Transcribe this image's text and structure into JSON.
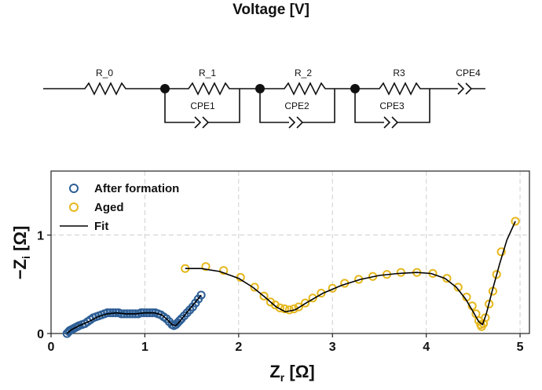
{
  "header": {
    "title": "Voltage [V]"
  },
  "circuit": {
    "r0": "R_0",
    "r1": "R_1",
    "r2": "R_2",
    "r3": "R3",
    "cpe1": "CPE1",
    "cpe2": "CPE2",
    "cpe3": "CPE3",
    "cpe4": "CPE4"
  },
  "chart_data": {
    "type": "scatter",
    "xlabel_main": "Z",
    "xlabel_sub": "r",
    "xlabel_unit": " [Ω]",
    "ylabel_main": "−Z",
    "ylabel_sub": "i",
    "ylabel_unit": " [Ω]",
    "xlim": [
      0,
      5.1
    ],
    "ylim": [
      0,
      1.65
    ],
    "x_ticks": [
      0,
      1,
      2,
      3,
      4,
      5
    ],
    "x_tick_labels": [
      "0",
      "1",
      "2",
      "3",
      "4",
      "5"
    ],
    "y_ticks": [
      0,
      1
    ],
    "y_tick_labels": [
      "0",
      "1"
    ],
    "grid": true,
    "legend_position": "top-left",
    "series": [
      {
        "name": "After formation",
        "kind": "markers",
        "color": "#2e5f96",
        "x": [
          0.17,
          0.19,
          0.2,
          0.22,
          0.24,
          0.26,
          0.28,
          0.3,
          0.33,
          0.36,
          0.39,
          0.42,
          0.45,
          0.48,
          0.51,
          0.54,
          0.57,
          0.6,
          0.63,
          0.66,
          0.69,
          0.72,
          0.75,
          0.78,
          0.81,
          0.84,
          0.87,
          0.9,
          0.93,
          0.96,
          0.99,
          1.02,
          1.05,
          1.08,
          1.11,
          1.14,
          1.17,
          1.2,
          1.23,
          1.26,
          1.29,
          1.31,
          1.33,
          1.35,
          1.37,
          1.39,
          1.42,
          1.45,
          1.48,
          1.51,
          1.54,
          1.57,
          1.6
        ],
        "y": [
          0.0,
          0.02,
          0.03,
          0.04,
          0.05,
          0.06,
          0.07,
          0.08,
          0.09,
          0.1,
          0.12,
          0.14,
          0.16,
          0.17,
          0.18,
          0.19,
          0.2,
          0.21,
          0.21,
          0.21,
          0.21,
          0.21,
          0.2,
          0.2,
          0.2,
          0.2,
          0.2,
          0.2,
          0.2,
          0.21,
          0.21,
          0.21,
          0.21,
          0.21,
          0.21,
          0.2,
          0.19,
          0.17,
          0.15,
          0.12,
          0.09,
          0.08,
          0.09,
          0.11,
          0.13,
          0.15,
          0.18,
          0.21,
          0.24,
          0.27,
          0.31,
          0.35,
          0.39
        ]
      },
      {
        "name": "Aged",
        "kind": "markers",
        "color": "#e6b81e",
        "x": [
          1.43,
          1.65,
          1.84,
          2.02,
          2.17,
          2.27,
          2.34,
          2.39,
          2.44,
          2.49,
          2.54,
          2.59,
          2.64,
          2.71,
          2.79,
          2.88,
          3.0,
          3.13,
          3.28,
          3.43,
          3.58,
          3.73,
          3.9,
          4.07,
          4.22,
          4.34,
          4.43,
          4.49,
          4.53,
          4.56,
          4.58,
          4.59,
          4.61,
          4.63,
          4.67,
          4.71,
          4.75,
          4.8,
          4.95
        ],
        "y": [
          0.66,
          0.68,
          0.64,
          0.57,
          0.47,
          0.38,
          0.32,
          0.29,
          0.26,
          0.25,
          0.24,
          0.25,
          0.27,
          0.31,
          0.36,
          0.41,
          0.46,
          0.51,
          0.55,
          0.58,
          0.6,
          0.62,
          0.62,
          0.61,
          0.56,
          0.47,
          0.37,
          0.28,
          0.2,
          0.13,
          0.09,
          0.07,
          0.1,
          0.16,
          0.3,
          0.43,
          0.6,
          0.83,
          1.14
        ]
      },
      {
        "name": "Fit",
        "kind": "line",
        "color": "#000000",
        "x": [
          0.17,
          0.22,
          0.3,
          0.4,
          0.5,
          0.6,
          0.7,
          0.8,
          0.9,
          1.0,
          1.1,
          1.18,
          1.24,
          1.29,
          1.33,
          1.37,
          1.42,
          1.48,
          1.54,
          1.6
        ],
        "y": [
          0.0,
          0.04,
          0.08,
          0.12,
          0.17,
          0.2,
          0.21,
          0.2,
          0.2,
          0.21,
          0.21,
          0.19,
          0.14,
          0.09,
          0.08,
          0.12,
          0.18,
          0.25,
          0.32,
          0.39
        ],
        "x2": [
          1.43,
          1.6,
          1.8,
          2.0,
          2.15,
          2.28,
          2.4,
          2.5,
          2.6,
          2.72,
          2.9,
          3.1,
          3.3,
          3.5,
          3.7,
          3.9,
          4.05,
          4.2,
          4.32,
          4.42,
          4.5,
          4.56,
          4.6,
          4.64,
          4.7,
          4.78,
          4.86,
          4.95
        ],
        "y2": [
          0.66,
          0.66,
          0.63,
          0.56,
          0.47,
          0.37,
          0.27,
          0.22,
          0.24,
          0.31,
          0.41,
          0.49,
          0.55,
          0.59,
          0.61,
          0.62,
          0.61,
          0.56,
          0.47,
          0.35,
          0.22,
          0.12,
          0.09,
          0.2,
          0.42,
          0.7,
          0.95,
          1.14
        ]
      }
    ]
  }
}
